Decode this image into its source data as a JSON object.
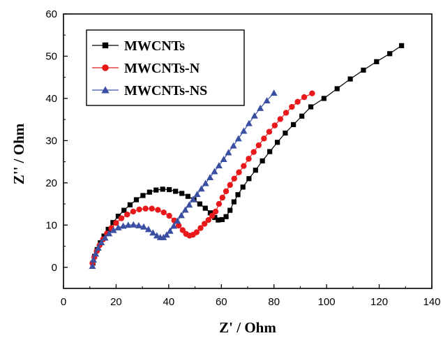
{
  "chart_data": {
    "type": "scatter",
    "title": "",
    "xlabel": "Z' / Ohm",
    "ylabel": "Z'' / Ohm",
    "xlim": [
      0,
      140
    ],
    "ylim": [
      -5,
      60
    ],
    "x_ticks": [
      0,
      20,
      40,
      60,
      80,
      100,
      120,
      140
    ],
    "y_ticks": [
      0,
      10,
      20,
      30,
      40,
      50,
      60
    ],
    "grid": false,
    "legend_position": "top-left",
    "series": [
      {
        "name": "MWCNTs",
        "color": "#000000",
        "marker": "square",
        "points": [
          [
            11.2,
            1.0
          ],
          [
            11.8,
            2.6
          ],
          [
            12.8,
            4.2
          ],
          [
            14.0,
            5.8
          ],
          [
            15.4,
            7.4
          ],
          [
            17.0,
            9.0
          ],
          [
            18.8,
            10.6
          ],
          [
            20.8,
            12.1
          ],
          [
            23.0,
            13.5
          ],
          [
            25.3,
            14.8
          ],
          [
            27.7,
            16.0
          ],
          [
            30.2,
            17.0
          ],
          [
            32.7,
            17.8
          ],
          [
            35.2,
            18.3
          ],
          [
            37.7,
            18.5
          ],
          [
            40.2,
            18.4
          ],
          [
            42.6,
            18.0
          ],
          [
            45.0,
            17.5
          ],
          [
            47.3,
            16.8
          ],
          [
            49.6,
            16.0
          ],
          [
            51.8,
            15.0
          ],
          [
            53.9,
            14.0
          ],
          [
            55.8,
            12.9
          ],
          [
            57.5,
            11.8
          ],
          [
            58.8,
            11.2
          ],
          [
            60.3,
            11.3
          ],
          [
            61.8,
            12.0
          ],
          [
            63.3,
            13.5
          ],
          [
            64.8,
            15.5
          ],
          [
            66.3,
            17.2
          ],
          [
            68.2,
            19.0
          ],
          [
            70.5,
            21.0
          ],
          [
            73.0,
            23.0
          ],
          [
            75.6,
            25.2
          ],
          [
            78.4,
            27.4
          ],
          [
            81.3,
            29.6
          ],
          [
            84.3,
            31.8
          ],
          [
            87.4,
            33.8
          ],
          [
            90.6,
            35.8
          ],
          [
            94.0,
            38.0
          ],
          [
            99.0,
            40.0
          ],
          [
            104.0,
            42.3
          ],
          [
            109.0,
            44.6
          ],
          [
            114.0,
            46.7
          ],
          [
            119.0,
            48.7
          ],
          [
            124.0,
            50.6
          ],
          [
            128.5,
            52.5
          ]
        ]
      },
      {
        "name": "MWCNTs-N",
        "color": "#e8191b",
        "marker": "circle",
        "points": [
          [
            11.0,
            1.0
          ],
          [
            11.7,
            2.4
          ],
          [
            12.6,
            3.8
          ],
          [
            13.7,
            5.2
          ],
          [
            15.0,
            6.6
          ],
          [
            16.5,
            8.0
          ],
          [
            18.2,
            9.3
          ],
          [
            20.0,
            10.5
          ],
          [
            22.0,
            11.6
          ],
          [
            24.2,
            12.5
          ],
          [
            26.5,
            13.2
          ],
          [
            28.8,
            13.7
          ],
          [
            31.2,
            13.9
          ],
          [
            33.6,
            13.9
          ],
          [
            35.9,
            13.6
          ],
          [
            38.1,
            13.0
          ],
          [
            40.2,
            12.2
          ],
          [
            42.1,
            11.1
          ],
          [
            43.8,
            9.9
          ],
          [
            45.3,
            8.8
          ],
          [
            46.6,
            7.9
          ],
          [
            47.9,
            7.5
          ],
          [
            49.2,
            7.7
          ],
          [
            50.6,
            8.3
          ],
          [
            52.1,
            9.3
          ],
          [
            53.6,
            10.3
          ],
          [
            55.1,
            11.2
          ],
          [
            56.5,
            12.2
          ],
          [
            57.8,
            13.2
          ],
          [
            59.1,
            15.0
          ],
          [
            60.4,
            16.5
          ],
          [
            61.8,
            18.0
          ],
          [
            63.3,
            19.5
          ],
          [
            64.9,
            21.0
          ],
          [
            66.7,
            22.5
          ],
          [
            68.5,
            24.0
          ],
          [
            70.4,
            25.7
          ],
          [
            72.3,
            27.3
          ],
          [
            74.2,
            28.9
          ],
          [
            76.2,
            30.5
          ],
          [
            78.2,
            32.1
          ],
          [
            80.3,
            33.6
          ],
          [
            82.4,
            35.1
          ],
          [
            84.6,
            36.6
          ],
          [
            86.8,
            38.0
          ],
          [
            89.0,
            39.2
          ],
          [
            91.5,
            40.3
          ],
          [
            94.5,
            41.2
          ]
        ]
      },
      {
        "name": "MWCNTs-NS",
        "color": "#3a4fa2",
        "marker": "triangle",
        "points": [
          [
            11.0,
            0.3
          ],
          [
            11.4,
            1.8
          ],
          [
            12.2,
            3.2
          ],
          [
            13.2,
            4.6
          ],
          [
            14.4,
            5.9
          ],
          [
            15.8,
            7.0
          ],
          [
            17.3,
            8.0
          ],
          [
            19.0,
            8.8
          ],
          [
            20.8,
            9.4
          ],
          [
            22.7,
            9.8
          ],
          [
            24.6,
            10.0
          ],
          [
            26.6,
            10.1
          ],
          [
            28.6,
            9.9
          ],
          [
            30.5,
            9.6
          ],
          [
            32.3,
            9.0
          ],
          [
            34.0,
            8.2
          ],
          [
            35.5,
            7.5
          ],
          [
            36.8,
            7.1
          ],
          [
            38.0,
            7.1
          ],
          [
            39.2,
            7.7
          ],
          [
            40.5,
            8.6
          ],
          [
            41.9,
            9.8
          ],
          [
            43.3,
            11.0
          ],
          [
            44.8,
            12.3
          ],
          [
            46.3,
            13.6
          ],
          [
            47.8,
            14.8
          ],
          [
            49.3,
            16.1
          ],
          [
            50.8,
            17.3
          ],
          [
            52.4,
            18.6
          ],
          [
            54.0,
            19.9
          ],
          [
            55.7,
            21.3
          ],
          [
            57.4,
            22.7
          ],
          [
            59.1,
            24.1
          ],
          [
            60.9,
            25.6
          ],
          [
            62.7,
            27.2
          ],
          [
            64.6,
            28.8
          ],
          [
            66.5,
            30.5
          ],
          [
            68.5,
            32.3
          ],
          [
            70.5,
            34.1
          ],
          [
            72.6,
            35.9
          ],
          [
            74.8,
            37.7
          ],
          [
            77.3,
            39.5
          ],
          [
            80.0,
            41.3
          ]
        ]
      }
    ]
  }
}
